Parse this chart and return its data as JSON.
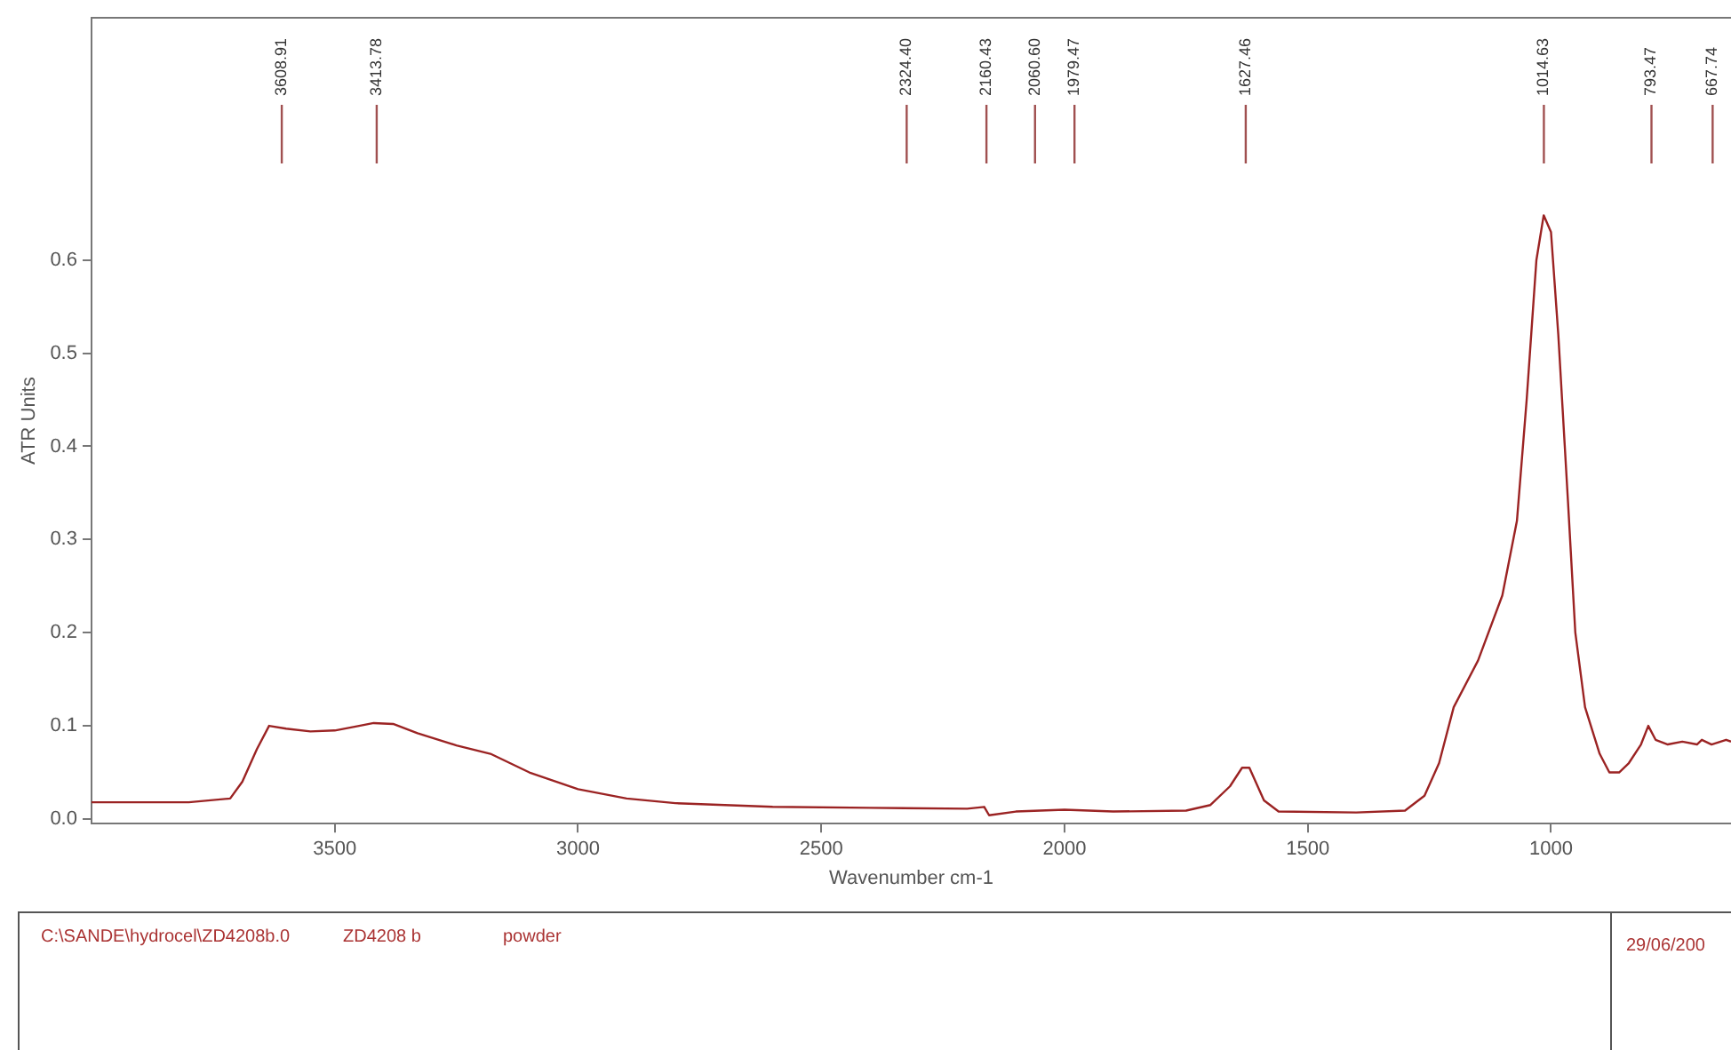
{
  "chart_data": {
    "type": "line",
    "xlabel": "Wavenumber cm-1",
    "ylabel": "ATR Units",
    "xlim": [
      4000,
      630
    ],
    "ylim": [
      -0.005,
      0.86
    ],
    "xticks": [
      3500,
      3000,
      2500,
      2000,
      1500,
      1000
    ],
    "yticks": [
      {
        "value": 0,
        "label": "0.0"
      },
      0.1,
      0.2,
      0.3,
      0.4,
      0.5,
      0.6
    ],
    "grid": false,
    "legend": false,
    "marker": "none",
    "line_style": "solid",
    "series": [
      {
        "color": "#9b2323",
        "x": [
          4000,
          3800,
          3715,
          3690,
          3660,
          3635,
          3600,
          3550,
          3500,
          3450,
          3420,
          3380,
          3330,
          3250,
          3180,
          3100,
          3000,
          2900,
          2800,
          2600,
          2400,
          2200,
          2165,
          2155,
          2100,
          2000,
          1900,
          1750,
          1700,
          1660,
          1635,
          1620,
          1590,
          1560,
          1400,
          1300,
          1260,
          1230,
          1200,
          1150,
          1100,
          1070,
          1050,
          1030,
          1015,
          1000,
          985,
          965,
          950,
          930,
          900,
          880,
          860,
          840,
          815,
          800,
          785,
          760,
          730,
          700,
          690,
          670,
          640,
          630
        ],
        "values": [
          0.018,
          0.018,
          0.022,
          0.04,
          0.075,
          0.1,
          0.097,
          0.094,
          0.095,
          0.1,
          0.103,
          0.102,
          0.092,
          0.079,
          0.07,
          0.05,
          0.032,
          0.022,
          0.017,
          0.013,
          0.012,
          0.011,
          0.013,
          0.004,
          0.008,
          0.01,
          0.008,
          0.009,
          0.015,
          0.035,
          0.055,
          0.055,
          0.02,
          0.008,
          0.007,
          0.009,
          0.025,
          0.06,
          0.12,
          0.17,
          0.24,
          0.32,
          0.45,
          0.6,
          0.648,
          0.63,
          0.52,
          0.34,
          0.2,
          0.12,
          0.07,
          0.05,
          0.05,
          0.06,
          0.08,
          0.1,
          0.085,
          0.08,
          0.083,
          0.08,
          0.085,
          0.08,
          0.085,
          0.083
        ]
      }
    ],
    "ref_lines": [
      {
        "axis": "x",
        "value": 3608.91,
        "label": "3608.91"
      },
      {
        "axis": "x",
        "value": 3413.78,
        "label": "3413.78"
      },
      {
        "axis": "x",
        "value": 2324.4,
        "label": "2324.40"
      },
      {
        "axis": "x",
        "value": 2160.43,
        "label": "2160.43"
      },
      {
        "axis": "x",
        "value": 2060.6,
        "label": "2060.60"
      },
      {
        "axis": "x",
        "value": 1979.47,
        "label": "1979.47"
      },
      {
        "axis": "x",
        "value": 1627.46,
        "label": "1627.46"
      },
      {
        "axis": "x",
        "value": 1014.63,
        "label": "1014.63"
      },
      {
        "axis": "x",
        "value": 793.47,
        "label": "793.47"
      },
      {
        "axis": "x",
        "value": 667.74,
        "label": "667.74"
      }
    ],
    "annotations": [
      "C:\\SANDE\\hydrocel\\ZD4208b.0",
      "ZD4208 b",
      "powder",
      "29/06/200"
    ]
  }
}
